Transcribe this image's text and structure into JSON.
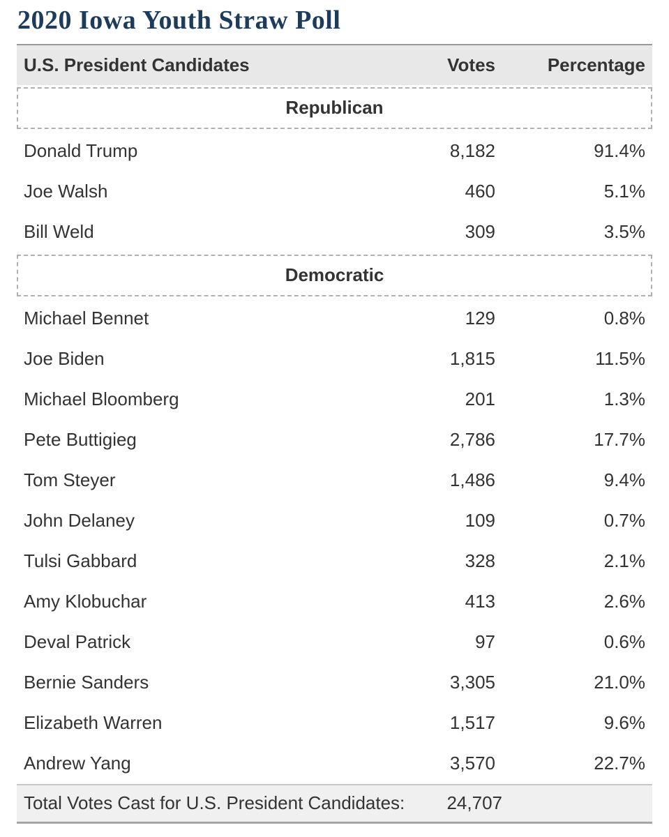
{
  "page": {
    "title": "2020 Iowa Youth Straw Poll"
  },
  "table": {
    "columns": [
      "U.S. President Candidates",
      "Votes",
      "Percentage"
    ],
    "sections": [
      {
        "label": "Republican",
        "rows": [
          {
            "name": "Donald Trump",
            "votes": "8,182",
            "percentage": "91.4%"
          },
          {
            "name": "Joe Walsh",
            "votes": "460",
            "percentage": "5.1%"
          },
          {
            "name": "Bill Weld",
            "votes": "309",
            "percentage": "3.5%"
          }
        ]
      },
      {
        "label": "Democratic",
        "rows": [
          {
            "name": "Michael Bennet",
            "votes": "129",
            "percentage": "0.8%"
          },
          {
            "name": "Joe Biden",
            "votes": "1,815",
            "percentage": "11.5%"
          },
          {
            "name": "Michael Bloomberg",
            "votes": "201",
            "percentage": "1.3%"
          },
          {
            "name": "Pete Buttigieg",
            "votes": "2,786",
            "percentage": "17.7%"
          },
          {
            "name": "Tom Steyer",
            "votes": "1,486",
            "percentage": "9.4%"
          },
          {
            "name": "John Delaney",
            "votes": "109",
            "percentage": "0.7%"
          },
          {
            "name": "Tulsi Gabbard",
            "votes": "328",
            "percentage": "2.1%"
          },
          {
            "name": "Amy Klobuchar",
            "votes": "413",
            "percentage": "2.6%"
          },
          {
            "name": "Deval Patrick",
            "votes": "97",
            "percentage": "0.6%"
          },
          {
            "name": "Bernie Sanders",
            "votes": "3,305",
            "percentage": "21.0%"
          },
          {
            "name": "Elizabeth Warren",
            "votes": "1,517",
            "percentage": "9.6%"
          },
          {
            "name": "Andrew Yang",
            "votes": "3,570",
            "percentage": "22.7%"
          }
        ]
      }
    ],
    "footer": {
      "label": "Total Votes Cast for U.S. President Candidates:",
      "total": "24,707"
    }
  },
  "colors": {
    "title_navy": "#1d3c5b",
    "header_bg": "#e8e8e8",
    "footer_bg": "#f0f0f0",
    "text_dark": "#333333",
    "border_dark": "#999999",
    "border_dashed": "#b0b0b0",
    "footer_top_border": "#c8c8c8",
    "footer_bottom_border": "#a6a6a6"
  }
}
